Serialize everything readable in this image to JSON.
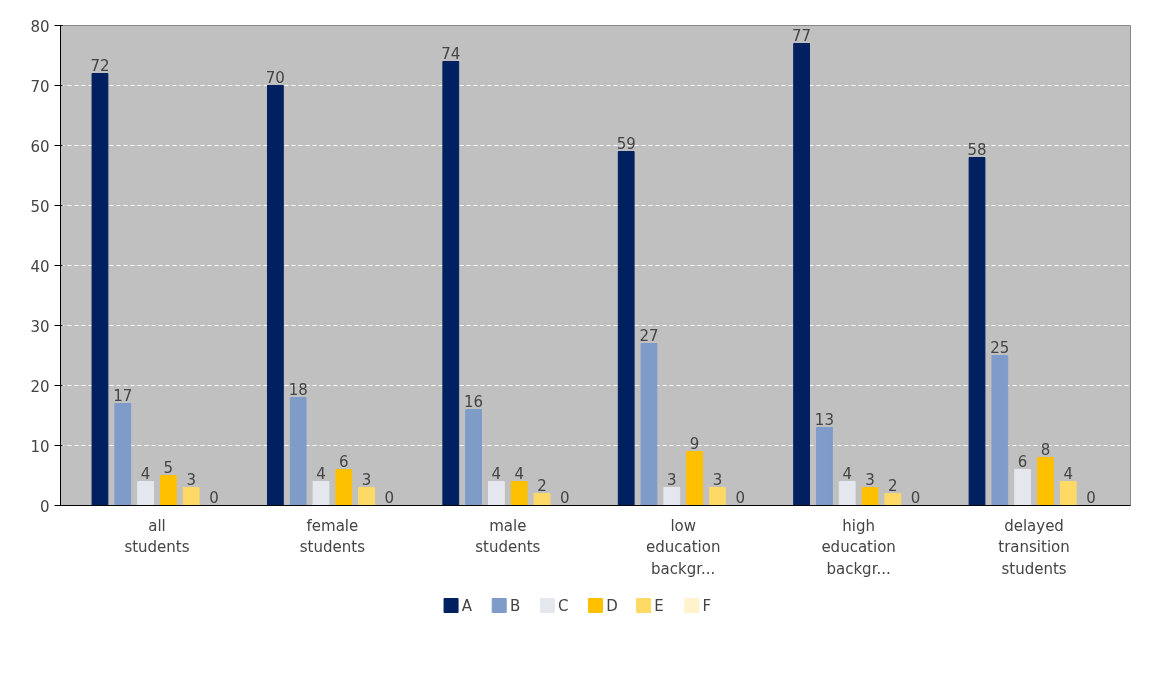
{
  "chart_data": {
    "type": "bar",
    "categories": [
      "all students",
      "female students",
      "male students",
      "low education backgr...",
      "high education backgr...",
      "delayed transition students"
    ],
    "series": [
      {
        "name": "A",
        "color": "#002060",
        "values": [
          72,
          70,
          74,
          59,
          77,
          58
        ]
      },
      {
        "name": "B",
        "color": "#7f9cc8",
        "values": [
          17,
          18,
          16,
          27,
          13,
          25
        ]
      },
      {
        "name": "C",
        "color": "#e4e8ee",
        "values": [
          4,
          4,
          4,
          3,
          4,
          6
        ]
      },
      {
        "name": "D",
        "color": "#ffc000",
        "values": [
          5,
          6,
          4,
          9,
          3,
          8
        ]
      },
      {
        "name": "E",
        "color": "#ffd966",
        "values": [
          3,
          3,
          2,
          3,
          2,
          4
        ]
      },
      {
        "name": "F",
        "color": "#fff2cc",
        "values": [
          0,
          0,
          0,
          0,
          0,
          0
        ]
      }
    ],
    "ylim": [
      0,
      80
    ],
    "yticks": [
      0,
      10,
      20,
      30,
      40,
      50,
      60,
      70,
      80
    ],
    "grid": "y",
    "legend": "bottom",
    "data_labels": true
  }
}
